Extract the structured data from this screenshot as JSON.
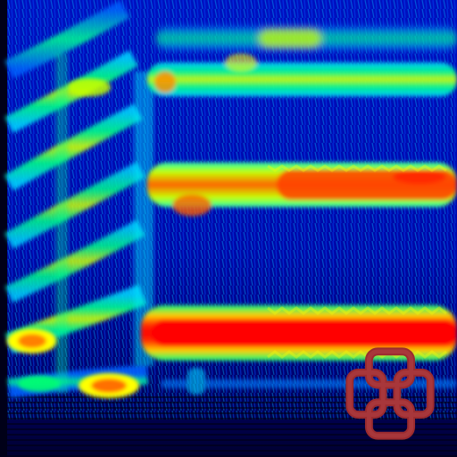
{
  "image": {
    "kind": "spectrogram",
    "colormap": [
      "#00008a",
      "#0000ff",
      "#0080ff",
      "#00e0ff",
      "#00ff60",
      "#ffff00",
      "#ff8000",
      "#ff0000"
    ],
    "background_color": "#00008a",
    "logo": {
      "name": "red-interlocked-knot-logo",
      "color": "#9b2b2f"
    }
  }
}
